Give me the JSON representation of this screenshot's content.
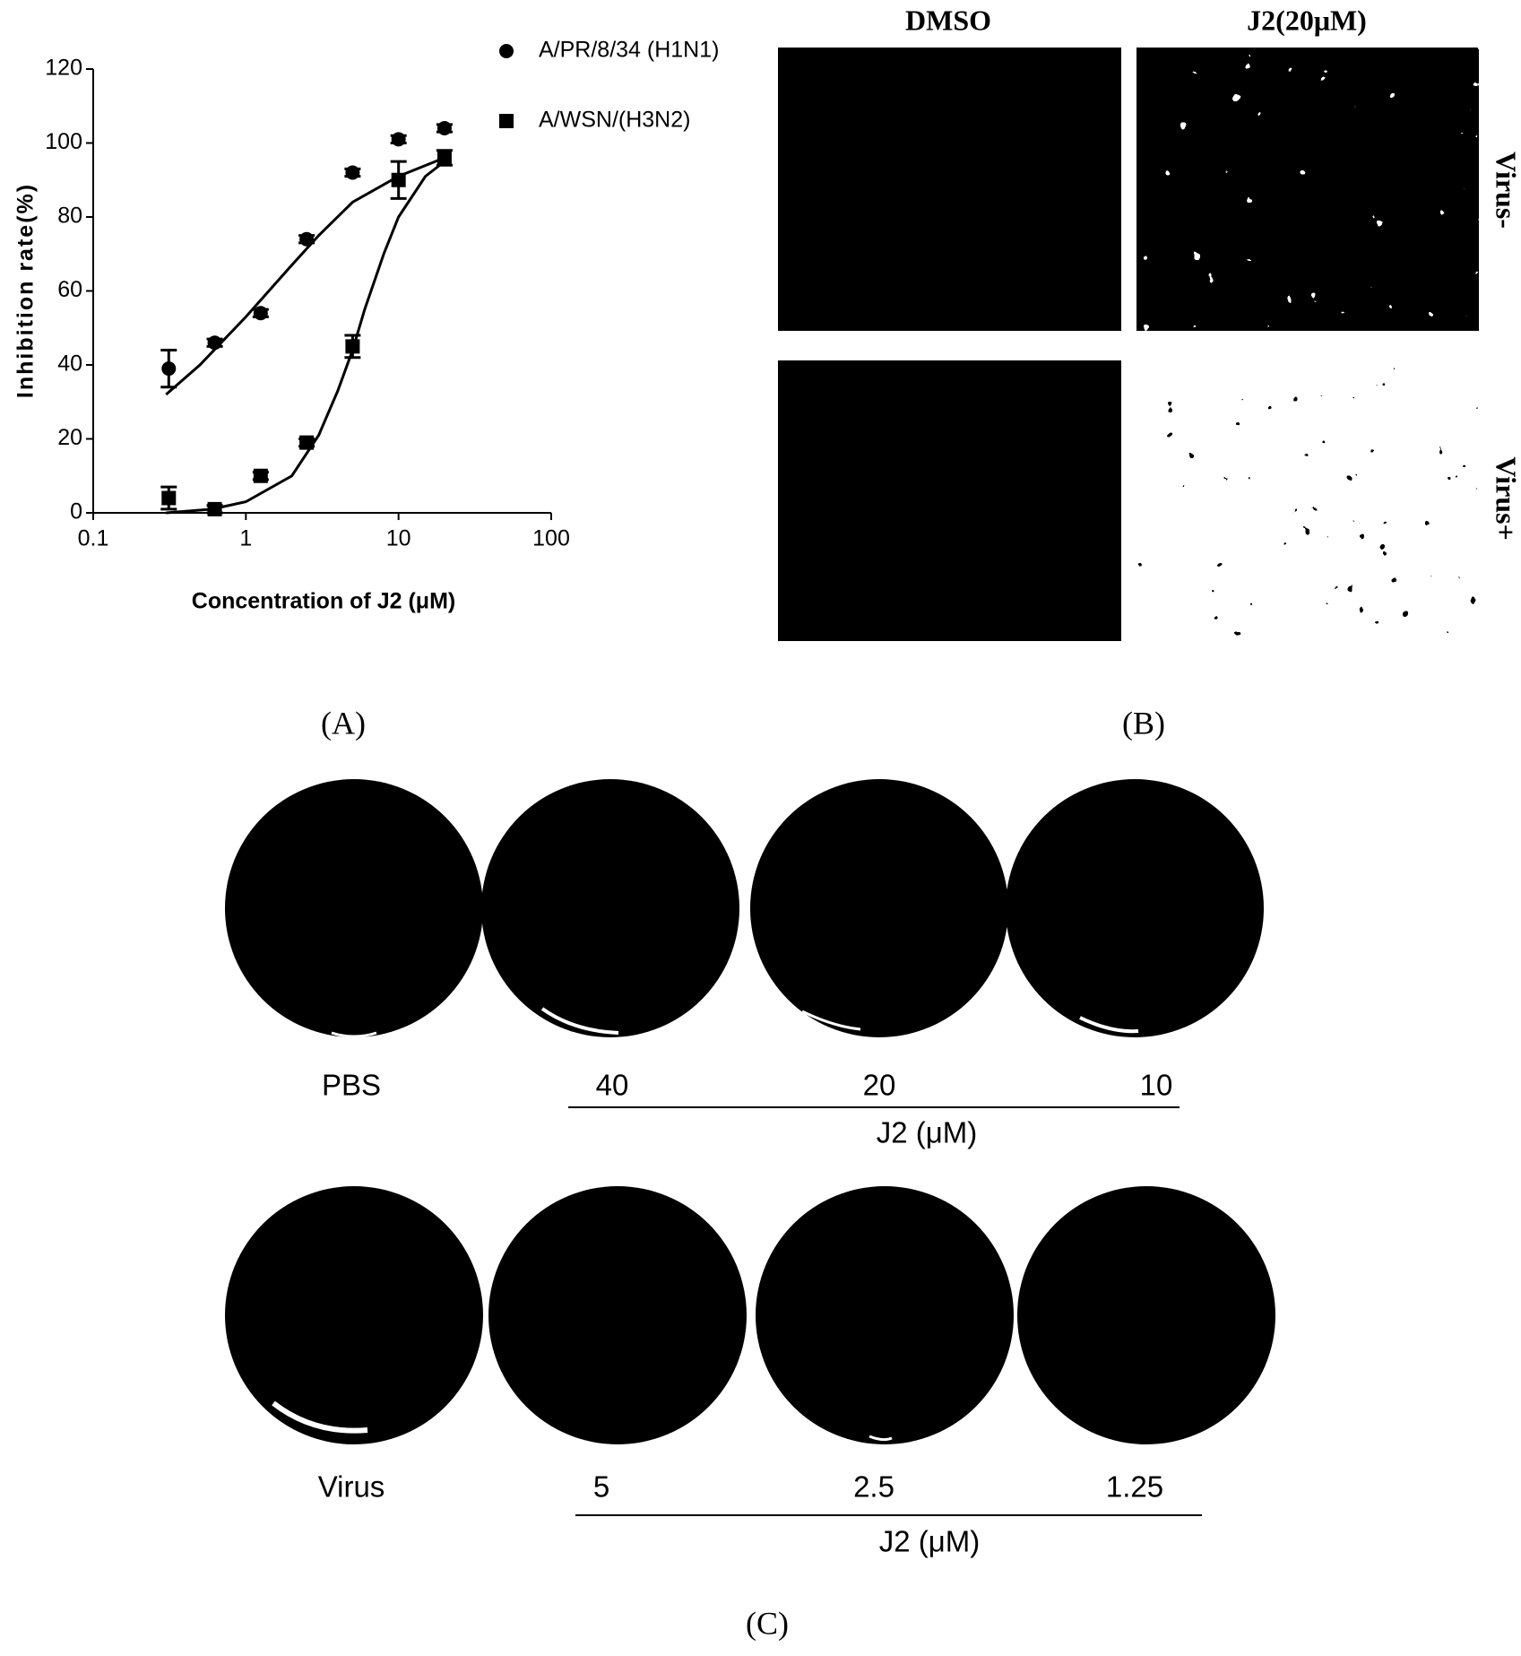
{
  "chart_data": {
    "type": "scatter",
    "xlabel": "Concentration of J2 (μM)",
    "ylabel": "Inhibition rate(%)",
    "xlim": [
      0.1,
      100
    ],
    "xticks": [
      0.1,
      1,
      10,
      100
    ],
    "xscale": "log",
    "ylim": [
      0,
      120
    ],
    "yticks": [
      0,
      20,
      40,
      60,
      80,
      100,
      120
    ],
    "legend": "top-right",
    "series": [
      {
        "name": "A/PR/8/34 (H1N1)",
        "marker": "circle",
        "color": "#000000",
        "x": [
          0.3125,
          0.625,
          1.25,
          2.5,
          5,
          10,
          20
        ],
        "values": [
          39,
          46,
          54,
          74,
          92,
          101,
          104
        ],
        "errors": [
          5,
          1,
          1,
          1,
          1,
          1,
          1
        ],
        "fit": {
          "x": [
            0.3,
            0.5,
            1,
            2,
            3,
            5,
            10,
            20
          ],
          "values": [
            32,
            40,
            53,
            67,
            75,
            84,
            91,
            96
          ]
        }
      },
      {
        "name": "A/WSN/(H3N2)",
        "marker": "square",
        "color": "#000000",
        "x": [
          0.3125,
          0.625,
          1.25,
          2.5,
          5,
          10,
          20
        ],
        "values": [
          4,
          1,
          10,
          19,
          45,
          90,
          96
        ],
        "errors": [
          3,
          1,
          1,
          1,
          3,
          5,
          2
        ],
        "fit": {
          "x": [
            0.3,
            0.6,
            1,
            2,
            3,
            4,
            5,
            6,
            8,
            10,
            15,
            20
          ],
          "values": [
            0,
            1,
            3,
            10,
            21,
            33,
            44,
            55,
            70,
            80,
            91,
            95
          ]
        }
      }
    ]
  },
  "panel_b": {
    "columns": [
      "DMSO",
      "J2(20μM)"
    ],
    "rows": [
      "Virus-",
      "Virus+"
    ]
  },
  "panel_c": {
    "row1": {
      "control": "PBS",
      "doses": [
        "40",
        "20",
        "10"
      ],
      "unit": "J2 (μM)"
    },
    "row2": {
      "control": "Virus",
      "doses": [
        "5",
        "2.5",
        "1.25"
      ],
      "unit": "J2 (μM)"
    }
  },
  "panel_labels": [
    "(A)",
    "(B)",
    "(C)"
  ]
}
